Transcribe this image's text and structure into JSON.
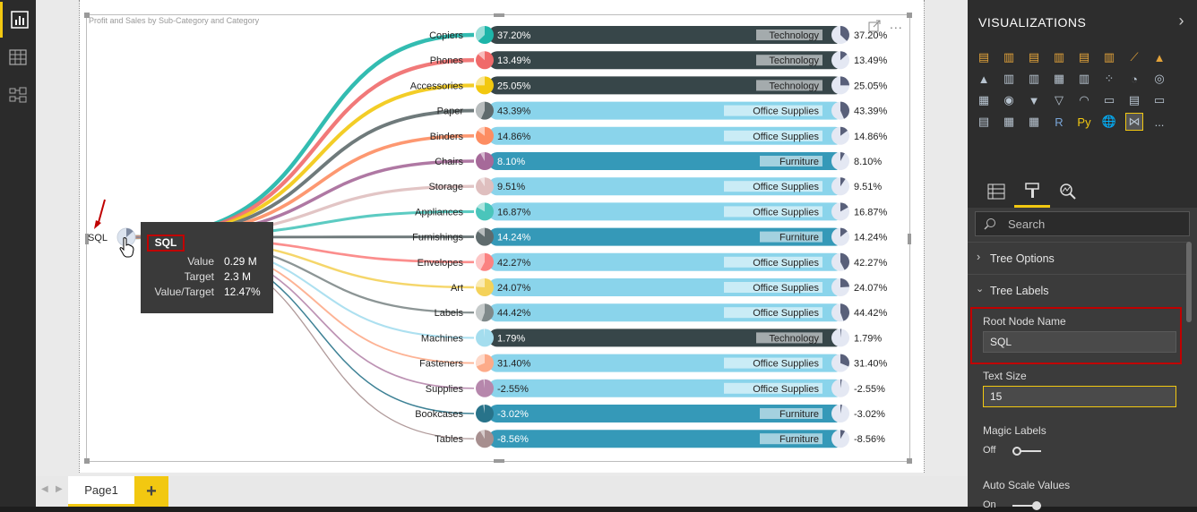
{
  "left_nav": {
    "report_icon": "bar-chart-icon",
    "data_icon": "table-icon",
    "model_icon": "relationships-icon"
  },
  "visual": {
    "title": "Profit and Sales by Sub-Category and Category",
    "root_label": "SQL",
    "tooltip": {
      "name": "SQL",
      "rows": [
        {
          "key": "Value",
          "value": "0.29 M"
        },
        {
          "key": "Target",
          "value": "2.3 M"
        },
        {
          "key": "Value/Target",
          "value": "12.47%"
        }
      ]
    },
    "header_icons": {
      "focus": "focus-mode-icon",
      "more": "..."
    }
  },
  "chart_data": {
    "type": "tree-bar",
    "title": "Profit and Sales by Sub-Category and Category",
    "root": "SQL",
    "nodes": [
      {
        "name": "Copiers",
        "value": "37.20%",
        "pct": 37.2,
        "category": "Technology",
        "color": "#1db5a9"
      },
      {
        "name": "Phones",
        "value": "13.49%",
        "pct": 13.49,
        "category": "Technology",
        "color": "#f06a6a"
      },
      {
        "name": "Accessories",
        "value": "25.05%",
        "pct": 25.05,
        "category": "Technology",
        "color": "#f2c80f"
      },
      {
        "name": "Paper",
        "value": "43.39%",
        "pct": 43.39,
        "category": "Office Supplies",
        "color": "#5f6b6d"
      },
      {
        "name": "Binders",
        "value": "14.86%",
        "pct": 14.86,
        "category": "Office Supplies",
        "color": "#fd8d62"
      },
      {
        "name": "Chairs",
        "value": "8.10%",
        "pct": 8.1,
        "category": "Furniture",
        "color": "#a66999"
      },
      {
        "name": "Storage",
        "value": "9.51%",
        "pct": 9.51,
        "category": "Office Supplies",
        "color": "#dfbfbf"
      },
      {
        "name": "Appliances",
        "value": "16.87%",
        "pct": 16.87,
        "category": "Office Supplies",
        "color": "#4ac5bb"
      },
      {
        "name": "Furnishings",
        "value": "14.24%",
        "pct": 14.24,
        "category": "Furniture",
        "color": "#5f6b6d"
      },
      {
        "name": "Envelopes",
        "value": "42.27%",
        "pct": 42.27,
        "category": "Office Supplies",
        "color": "#fb8281"
      },
      {
        "name": "Art",
        "value": "24.07%",
        "pct": 24.07,
        "category": "Office Supplies",
        "color": "#f4d25a"
      },
      {
        "name": "Labels",
        "value": "44.42%",
        "pct": 44.42,
        "category": "Office Supplies",
        "color": "#7f898a"
      },
      {
        "name": "Machines",
        "value": "1.79%",
        "pct": 1.79,
        "category": "Technology",
        "color": "#a4ddee"
      },
      {
        "name": "Fasteners",
        "value": "31.40%",
        "pct": 31.4,
        "category": "Office Supplies",
        "color": "#fdab89"
      },
      {
        "name": "Supplies",
        "value": "-2.55%",
        "pct": -2.55,
        "category": "Office Supplies",
        "color": "#b687ac"
      },
      {
        "name": "Bookcases",
        "value": "-3.02%",
        "pct": -3.02,
        "category": "Furniture",
        "color": "#28738a"
      },
      {
        "name": "Tables",
        "value": "-8.56%",
        "pct": -8.56,
        "category": "Furniture",
        "color": "#a78f8f"
      }
    ],
    "category_colors": {
      "Technology": "#374649",
      "Office Supplies": "#8ad4eb",
      "Furniture": "#3599b8"
    }
  },
  "bottom": {
    "page_tab": "Page1",
    "add_label": "+"
  },
  "right_pane": {
    "header": "VISUALIZATIONS",
    "search_placeholder": "Search",
    "sections": {
      "tree_options": "Tree Options",
      "tree_labels": "Tree Labels"
    },
    "fields": {
      "root_node_name_label": "Root Node Name",
      "root_node_name_value": "SQL",
      "text_size_label": "Text Size",
      "text_size_value": "15",
      "magic_labels_label": "Magic Labels",
      "magic_labels_state": "Off",
      "auto_scale_label": "Auto Scale Values",
      "auto_scale_state": "On"
    },
    "gallery_text": {
      "r": "R",
      "py": "Py",
      "more": "..."
    }
  },
  "colors": {
    "accent": "#f2c811",
    "highlight_red": "#c00000"
  }
}
